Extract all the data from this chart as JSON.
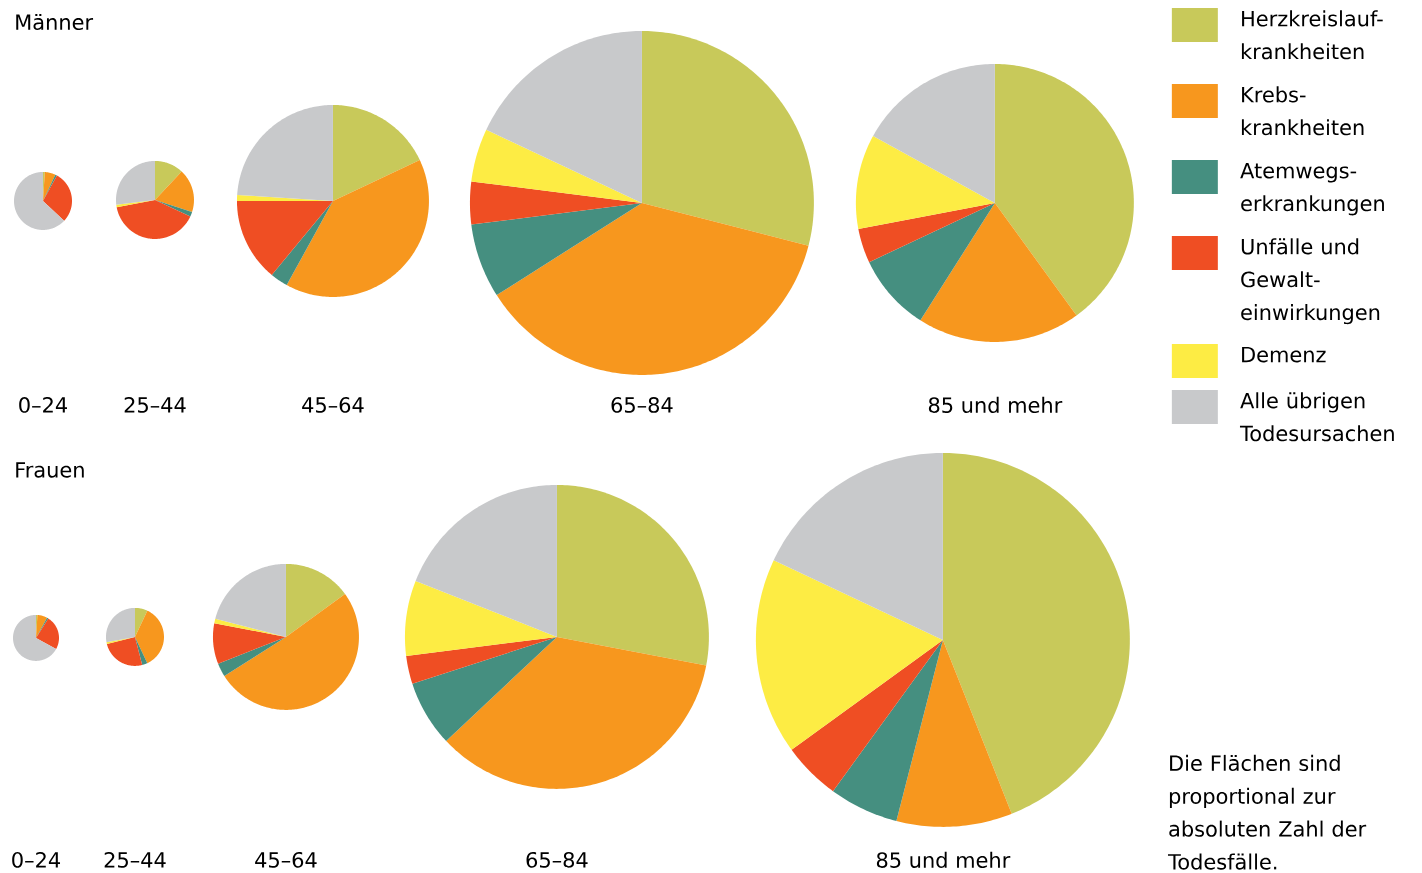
{
  "chart_data": [
    {
      "type": "pie",
      "title": "Männer",
      "xlabel": "0–24",
      "categories": [
        null,
        null,
        null,
        null,
        null,
        null
      ],
      "values": [
        1,
        6,
        1,
        29,
        0,
        63
      ],
      "colors": [
        "#c8c95a",
        "#f7971e",
        "#458f80",
        "#ef4e23",
        "#fdec44",
        "#c8c9cb"
      ]
    },
    {
      "type": "pie",
      "xlabel": "25–44",
      "categories": [
        null,
        null,
        null,
        null,
        null,
        null
      ],
      "values": [
        12,
        18,
        2,
        40,
        1,
        27
      ],
      "colors": [
        "#c8c95a",
        "#f7971e",
        "#458f80",
        "#ef4e23",
        "#fdec44",
        "#c8c9cb"
      ]
    },
    {
      "type": "pie",
      "xlabel": "45–64",
      "categories": [
        null,
        null,
        null,
        null,
        null,
        null
      ],
      "values": [
        18,
        40,
        3,
        14,
        1,
        24
      ],
      "colors": [
        "#c8c95a",
        "#f7971e",
        "#458f80",
        "#ef4e23",
        "#fdec44",
        "#c8c9cb"
      ]
    },
    {
      "type": "pie",
      "xlabel": "65–84",
      "categories": [
        null,
        null,
        null,
        null,
        null,
        null
      ],
      "values": [
        29,
        37,
        7,
        4,
        5,
        18
      ],
      "colors": [
        "#c8c95a",
        "#f7971e",
        "#458f80",
        "#ef4e23",
        "#fdec44",
        "#c8c9cb"
      ]
    },
    {
      "type": "pie",
      "xlabel": "85 und mehr",
      "legend": "right",
      "categories": [
        "Herzkreislauf-krankheiten",
        "Krebs-krankheiten",
        "Atemwegs-erkrankungen",
        "Unfälle und Gewalt-einwirkungen",
        "Demenz",
        "Alle übrigen Todesursachen"
      ],
      "values": [
        40,
        19,
        9,
        4,
        11,
        17
      ],
      "colors": [
        "#c8c95a",
        "#f7971e",
        "#458f80",
        "#ef4e23",
        "#fdec44",
        "#c8c9cb"
      ]
    },
    {
      "type": "pie",
      "title": "Frauen",
      "xlabel": "0–24",
      "categories": [
        null,
        null,
        null,
        null,
        null,
        null
      ],
      "values": [
        1,
        7,
        1,
        24,
        0,
        67
      ],
      "colors": [
        "#c8c95a",
        "#f7971e",
        "#458f80",
        "#ef4e23",
        "#fdec44",
        "#c8c9cb"
      ]
    },
    {
      "type": "pie",
      "xlabel": "25–44",
      "categories": [
        null,
        null,
        null,
        null,
        null,
        null
      ],
      "values": [
        7,
        36,
        3,
        25,
        1,
        28
      ],
      "colors": [
        "#c8c95a",
        "#f7971e",
        "#458f80",
        "#ef4e23",
        "#fdec44",
        "#c8c9cb"
      ]
    },
    {
      "type": "pie",
      "xlabel": "45–64",
      "categories": [
        null,
        null,
        null,
        null,
        null,
        null
      ],
      "values": [
        15,
        51,
        3,
        9,
        1,
        21
      ],
      "colors": [
        "#c8c95a",
        "#f7971e",
        "#458f80",
        "#ef4e23",
        "#fdec44",
        "#c8c9cb"
      ]
    },
    {
      "type": "pie",
      "xlabel": "65–84",
      "categories": [
        null,
        null,
        null,
        null,
        null,
        null
      ],
      "values": [
        28,
        35,
        7,
        3,
        8,
        19
      ],
      "colors": [
        "#c8c95a",
        "#f7971e",
        "#458f80",
        "#ef4e23",
        "#fdec44",
        "#c8c9cb"
      ]
    },
    {
      "type": "pie",
      "xlabel": "85 und mehr",
      "annotations": [
        "Die Flächen sind proportional zur absoluten Zahl der Todesfälle."
      ],
      "categories": [
        null,
        null,
        null,
        null,
        null,
        null
      ],
      "values": [
        44,
        10,
        6,
        5,
        17,
        18
      ],
      "colors": [
        "#c8c95a",
        "#f7971e",
        "#458f80",
        "#ef4e23",
        "#fdec44",
        "#c8c9cb"
      ]
    }
  ]
}
